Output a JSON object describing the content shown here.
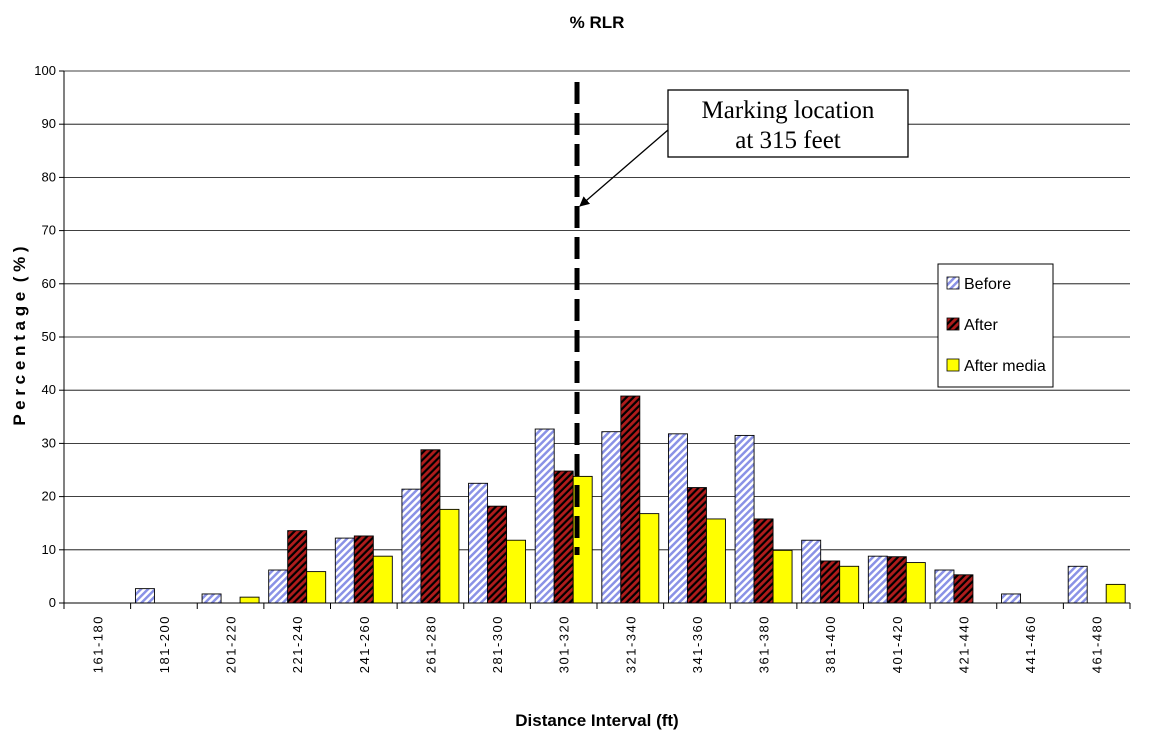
{
  "chart_data": {
    "type": "bar",
    "title": "% RLR",
    "xlabel": "Distance Interval (ft)",
    "ylabel": "P e r c e n t a g e  ( % )",
    "ylim": [
      0,
      100
    ],
    "yticks": [
      0,
      10,
      20,
      30,
      40,
      50,
      60,
      70,
      80,
      90,
      100
    ],
    "grid": true,
    "legend_position": "right",
    "categories": [
      "161-180",
      "181-200",
      "201-220",
      "221-240",
      "241-260",
      "261-280",
      "281-300",
      "301-320",
      "321-340",
      "341-360",
      "361-380",
      "381-400",
      "401-420",
      "421-440",
      "441-460",
      "461-480"
    ],
    "series": [
      {
        "name": "Before",
        "color": "#8a92e6",
        "pattern": "diagonal-hatch-light",
        "values": [
          0,
          2.7,
          1.7,
          6.2,
          12.2,
          21.4,
          22.5,
          32.7,
          32.2,
          31.8,
          31.5,
          11.8,
          8.8,
          6.2,
          1.7,
          6.9
        ]
      },
      {
        "name": "After",
        "color": "#b01c1c",
        "pattern": "diagonal-hatch-dark",
        "values": [
          0,
          0,
          0,
          13.6,
          12.6,
          28.8,
          18.2,
          24.8,
          38.9,
          21.7,
          15.8,
          7.9,
          8.7,
          5.3,
          0,
          0
        ]
      },
      {
        "name": "After media",
        "color": "#ffff00",
        "pattern": "solid",
        "values": [
          0,
          0,
          1.1,
          5.9,
          8.8,
          17.6,
          11.8,
          23.8,
          16.8,
          15.8,
          9.9,
          6.9,
          7.6,
          0,
          0,
          3.5
        ]
      }
    ],
    "annotations": [
      {
        "text": [
          "Marking location",
          "at 315 feet"
        ],
        "marker_x": 315,
        "marker_style": "dashed-vertical-line",
        "arrow_to_y": 75
      }
    ]
  }
}
